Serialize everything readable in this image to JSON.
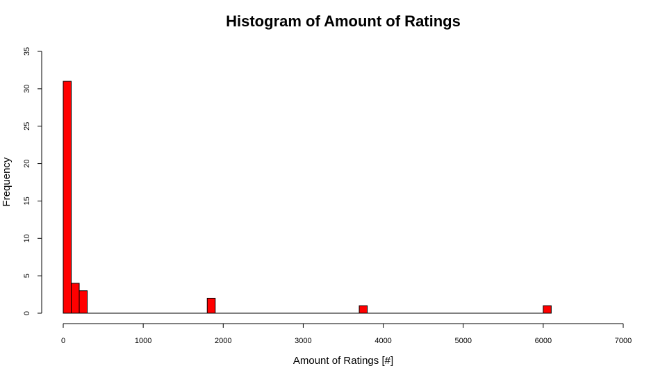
{
  "chart_data": {
    "type": "bar",
    "title": "Histogram of Amount of Ratings",
    "xlabel": "Amount of Ratings [#]",
    "ylabel": "Frequency",
    "xlim": [
      0,
      7000
    ],
    "ylim": [
      0,
      35
    ],
    "xticks": [
      0,
      1000,
      2000,
      3000,
      4000,
      5000,
      6000,
      7000
    ],
    "yticks": [
      0,
      5,
      10,
      15,
      20,
      25,
      30,
      35
    ],
    "bin_width": 100,
    "bins": [
      {
        "start": 0,
        "end": 100,
        "count": 31
      },
      {
        "start": 100,
        "end": 200,
        "count": 4
      },
      {
        "start": 200,
        "end": 300,
        "count": 3
      },
      {
        "start": 1800,
        "end": 1900,
        "count": 2
      },
      {
        "start": 3700,
        "end": 3800,
        "count": 1
      },
      {
        "start": 6000,
        "end": 6100,
        "count": 1
      }
    ],
    "bar_color": "#ff0000",
    "grid": false,
    "legend": "none"
  }
}
